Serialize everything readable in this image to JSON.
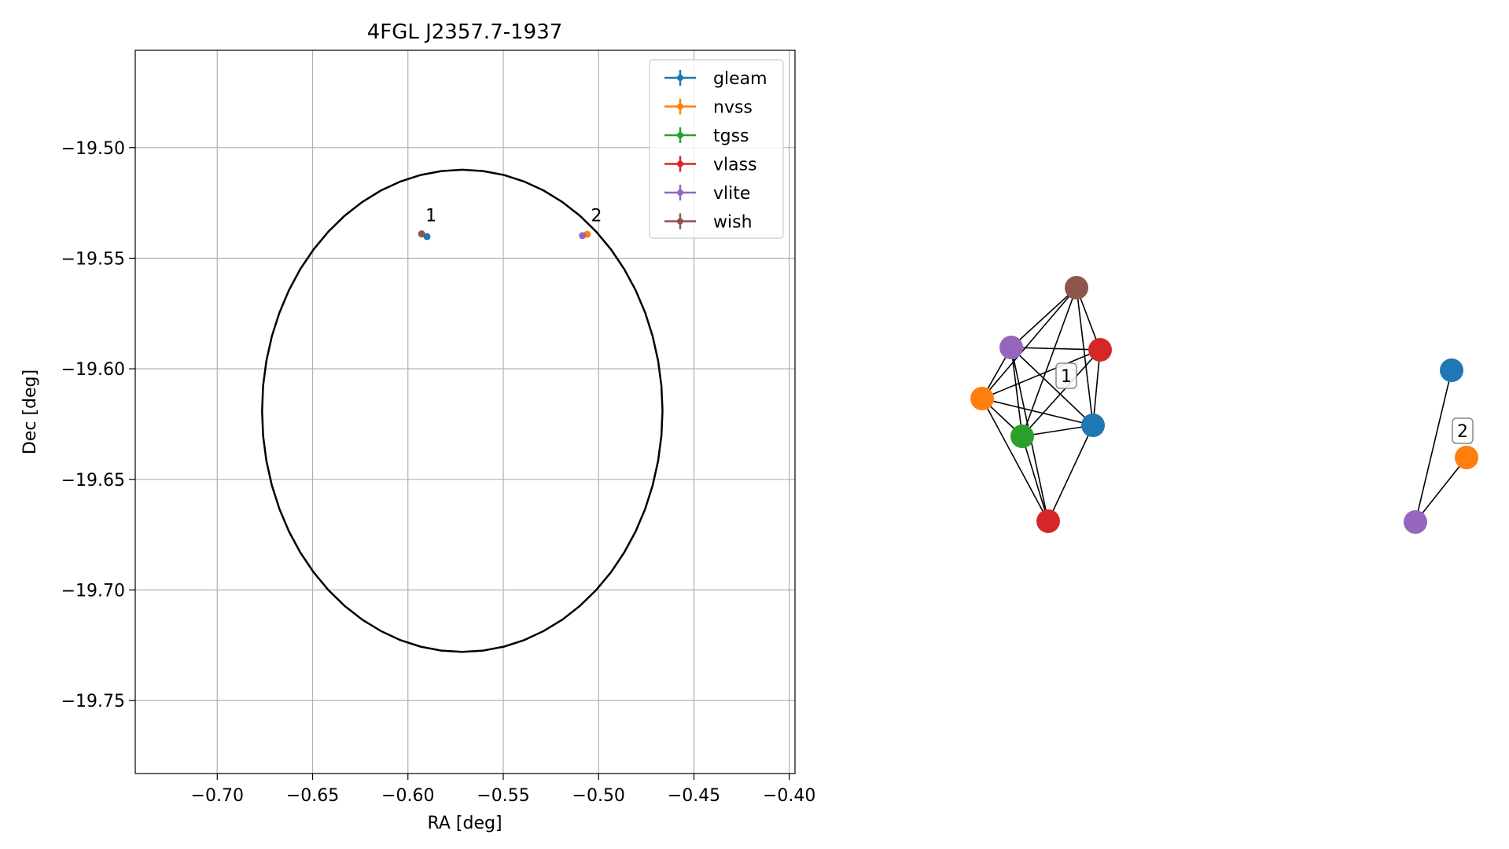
{
  "chart_data": [
    {
      "type": "scatter",
      "title": "4FGL J2357.7-1937",
      "xlabel": "RA [deg]",
      "ylabel": "Dec [deg]",
      "xlim": [
        -0.743,
        -0.397
      ],
      "ylim": [
        -19.783,
        -19.456
      ],
      "xticks": [
        -0.7,
        -0.65,
        -0.6,
        -0.55,
        -0.5,
        -0.45,
        -0.4
      ],
      "xtick_labels": [
        "−0.70",
        "−0.65",
        "−0.60",
        "−0.55",
        "−0.50",
        "−0.45",
        "−0.40"
      ],
      "yticks": [
        -19.5,
        -19.55,
        -19.6,
        -19.65,
        -19.7,
        -19.75
      ],
      "ytick_labels": [
        "−19.50",
        "−19.55",
        "−19.60",
        "−19.65",
        "−19.70",
        "−19.75"
      ],
      "grid": true,
      "legend_position": "top-right",
      "ellipse": {
        "center": [
          -0.5715,
          -19.619
        ],
        "semi_axis_ra": 0.105,
        "semi_axis_dec": 0.109,
        "color": "#000000"
      },
      "series": [
        {
          "name": "gleam",
          "color": "#1f77b4",
          "points": [
            [
              -0.59,
              -19.5402
            ]
          ]
        },
        {
          "name": "nvss",
          "color": "#ff7f0e",
          "points": [
            [
              -0.506,
              -19.5392
            ]
          ]
        },
        {
          "name": "tgss",
          "color": "#2ca02c",
          "points": []
        },
        {
          "name": "vlass",
          "color": "#d62728",
          "points": []
        },
        {
          "name": "vlite",
          "color": "#9467bd",
          "points": [
            [
              -0.5085,
              -19.5398
            ]
          ]
        },
        {
          "name": "wish",
          "color": "#8c564b",
          "points": [
            [
              -0.5928,
              -19.539
            ]
          ]
        }
      ],
      "annotations": [
        {
          "text": "1",
          "x": -0.5908,
          "y": -19.5333
        },
        {
          "text": "2",
          "x": -0.504,
          "y": -19.5333
        }
      ]
    },
    {
      "type": "network",
      "clusters": [
        {
          "label": "1",
          "nodes": [
            {
              "id": "wish",
              "color": "#8c564b"
            },
            {
              "id": "vlite",
              "color": "#9467bd"
            },
            {
              "id": "vlass-a",
              "color": "#d62728"
            },
            {
              "id": "nvss",
              "color": "#ff7f0e"
            },
            {
              "id": "gleam",
              "color": "#1f77b4"
            },
            {
              "id": "tgss",
              "color": "#2ca02c"
            },
            {
              "id": "vlass-b",
              "color": "#d62728"
            }
          ],
          "edges": [
            [
              "wish",
              "vlite"
            ],
            [
              "wish",
              "vlass-a"
            ],
            [
              "wish",
              "nvss"
            ],
            [
              "wish",
              "gleam"
            ],
            [
              "wish",
              "tgss"
            ],
            [
              "vlite",
              "vlass-a"
            ],
            [
              "vlite",
              "nvss"
            ],
            [
              "vlite",
              "gleam"
            ],
            [
              "vlite",
              "tgss"
            ],
            [
              "vlite",
              "vlass-b"
            ],
            [
              "vlass-a",
              "nvss"
            ],
            [
              "vlass-a",
              "gleam"
            ],
            [
              "vlass-a",
              "tgss"
            ],
            [
              "nvss",
              "gleam"
            ],
            [
              "nvss",
              "tgss"
            ],
            [
              "nvss",
              "vlass-b"
            ],
            [
              "gleam",
              "tgss"
            ],
            [
              "gleam",
              "vlass-b"
            ],
            [
              "tgss",
              "vlass-b"
            ]
          ]
        },
        {
          "label": "2",
          "nodes": [
            {
              "id": "gleam",
              "color": "#1f77b4"
            },
            {
              "id": "nvss",
              "color": "#ff7f0e"
            },
            {
              "id": "vlite",
              "color": "#9467bd"
            }
          ],
          "edges": [
            [
              "gleam",
              "vlite"
            ],
            [
              "nvss",
              "vlite"
            ]
          ]
        }
      ]
    }
  ]
}
